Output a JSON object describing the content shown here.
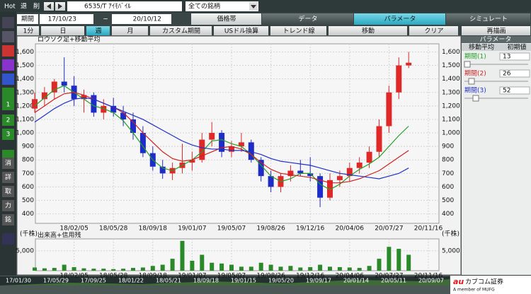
{
  "toolbar": {
    "hot": "Hot",
    "back": "退",
    "delete": "削",
    "symbol": "6535/T ｱｲﾓﾊﾞｲﾙ",
    "market": "全ての銘柄"
  },
  "period_bar": {
    "label": "期間",
    "from": "17/10/23",
    "sep": "~",
    "to": "20/10/12",
    "tabs": [
      "価格帯",
      "データ",
      "パラメータ",
      "シミュレート"
    ]
  },
  "interval_bar": {
    "buttons": [
      "1分",
      "日",
      "週",
      "月",
      "カスタム期間",
      "USドル換算",
      "トレンド線",
      "移動",
      "クリア",
      "再描画"
    ]
  },
  "side_icons": [
    "1",
    "2",
    "3",
    "消",
    "詳",
    "取",
    "力",
    "銘"
  ],
  "parameter_panel": {
    "title": "パラメータ",
    "col1": "移動平均",
    "col2": "初期値",
    "rows": [
      {
        "label": "期間(1)",
        "value": 13
      },
      {
        "label": "期間(2)",
        "value": 26
      },
      {
        "label": "期間(3)",
        "value": 52
      }
    ]
  },
  "chart_data": [
    {
      "type": "candlestick",
      "title": "ロウソク足+移動平均",
      "up_color": "#e02828",
      "down_color": "#1e2cc8",
      "categories": [
        null,
        null,
        null,
        null,
        "18/02/05",
        null,
        null,
        null,
        "18/05/28",
        null,
        null,
        null,
        "18/09/18",
        null,
        null,
        null,
        "19/01/07",
        null,
        null,
        null,
        "19/05/07",
        null,
        null,
        null,
        "19/08/26",
        null,
        null,
        null,
        "19/12/16",
        null,
        null,
        null,
        "20/04/06",
        null,
        null,
        null,
        "20/07/27",
        null,
        null,
        null,
        "20/11/16"
      ],
      "open": [
        1180,
        1250,
        1300,
        1380,
        1350,
        1250,
        1280,
        1150,
        1200,
        1150,
        1100,
        1000,
        850,
        750,
        700,
        740,
        780,
        800,
        950,
        1000,
        860,
        900,
        930,
        800,
        680,
        600,
        680,
        720,
        700,
        680,
        520,
        650,
        680,
        740,
        780,
        860,
        1050,
        1300,
        1500,
        null,
        null
      ],
      "high": [
        1300,
        1340,
        1400,
        1560,
        1420,
        1320,
        1300,
        1250,
        1260,
        1200,
        1150,
        1050,
        900,
        800,
        780,
        920,
        860,
        1000,
        1080,
        1020,
        940,
        1000,
        950,
        820,
        720,
        700,
        760,
        800,
        820,
        700,
        700,
        720,
        780,
        820,
        900,
        1100,
        1350,
        1560,
        1600,
        null,
        null
      ],
      "low": [
        1150,
        1200,
        1250,
        1300,
        1200,
        1150,
        1120,
        1100,
        1120,
        1050,
        950,
        820,
        720,
        660,
        650,
        700,
        720,
        780,
        900,
        820,
        820,
        860,
        780,
        640,
        560,
        560,
        640,
        680,
        640,
        450,
        500,
        600,
        640,
        700,
        740,
        820,
        1000,
        1250,
        1480,
        null,
        null
      ],
      "close": [
        1250,
        1300,
        1380,
        1350,
        1250,
        1280,
        1150,
        1200,
        1150,
        1100,
        1000,
        850,
        750,
        700,
        740,
        780,
        800,
        950,
        1000,
        860,
        900,
        930,
        800,
        680,
        600,
        680,
        720,
        700,
        680,
        520,
        650,
        680,
        740,
        780,
        860,
        1050,
        1300,
        1500,
        1520,
        null,
        null
      ],
      "series": [
        {
          "color": "#22a022",
          "values": [
            1200,
            1260,
            1320,
            1350,
            1300,
            1250,
            1200,
            1180,
            1150,
            1090,
            1000,
            900,
            800,
            740,
            720,
            760,
            800,
            860,
            940,
            950,
            920,
            900,
            840,
            760,
            680,
            640,
            660,
            700,
            700,
            620,
            580,
            620,
            680,
            730,
            770,
            820,
            900,
            980,
            1050,
            null,
            null
          ]
        },
        {
          "color": "#d02020",
          "values": [
            1150,
            1200,
            1250,
            1290,
            1300,
            1280,
            1250,
            1220,
            1190,
            1150,
            1080,
            1000,
            930,
            860,
            810,
            790,
            800,
            830,
            860,
            890,
            900,
            880,
            840,
            780,
            730,
            700,
            690,
            680,
            670,
            650,
            630,
            630,
            640,
            660,
            690,
            720,
            770,
            820,
            870,
            null,
            null
          ]
        },
        {
          "color": "#2030c8",
          "values": [
            1080,
            1130,
            1180,
            1220,
            1250,
            1260,
            1250,
            1220,
            1190,
            1160,
            1130,
            1100,
            1060,
            1020,
            980,
            940,
            910,
            890,
            880,
            880,
            870,
            870,
            860,
            840,
            810,
            790,
            780,
            770,
            760,
            740,
            720,
            700,
            690,
            680,
            670,
            660,
            680,
            700,
            740,
            null,
            null
          ]
        }
      ],
      "ylim": [
        330,
        1660
      ],
      "yticks": [
        {
          "value": 1600,
          "label": "1,600"
        },
        {
          "value": 1500,
          "label": "1,500"
        },
        {
          "value": 1400,
          "label": "1,400"
        },
        {
          "value": 1300,
          "label": "1,300"
        },
        {
          "value": 1200,
          "label": "1,200"
        },
        {
          "value": 1100,
          "label": "1,100"
        },
        {
          "value": 1000,
          "label": "1,000"
        },
        900,
        800,
        700,
        600,
        500,
        400
      ],
      "grid": true
    },
    {
      "type": "bar",
      "title": "出来高+信用残",
      "unit": "(千株)",
      "color": "#2a8a2a",
      "categories": [
        null,
        null,
        null,
        null,
        "18/02/05",
        null,
        null,
        null,
        "18/05/28",
        null,
        null,
        null,
        "18/09/18",
        null,
        null,
        null,
        "19/01/07",
        null,
        null,
        null,
        "19/05/07",
        null,
        null,
        null,
        "19/08/26",
        null,
        null,
        null,
        "19/12/16",
        null,
        null,
        null,
        "20/04/06",
        null,
        null,
        null,
        "20/07/27",
        null,
        null,
        null,
        "20/11/16"
      ],
      "values": [
        800,
        600,
        700,
        1500,
        900,
        600,
        500,
        500,
        400,
        500,
        700,
        800,
        1200,
        1500,
        3000,
        7500,
        2500,
        4000,
        2000,
        1800,
        1500,
        1000,
        1000,
        2000,
        1500,
        1000,
        1200,
        800,
        900,
        1500,
        1000,
        900,
        800,
        700,
        1200,
        3000,
        6000,
        5500,
        4000,
        null,
        null
      ],
      "ylim": [
        0,
        8000
      ],
      "yticks": [
        {
          "value": 5000,
          "label": "5,000"
        }
      ],
      "grid": true
    }
  ],
  "timeline": [
    "17/01/30",
    "17/05/29",
    "17/09/25",
    "18/01/22",
    "18/05/21",
    "18/09/18",
    "19/01/15",
    "19/05/20",
    "19/09/17",
    "20/01/14",
    "20/05/11",
    "20/09/07"
  ],
  "logo": {
    "brand": "au",
    "name": "カブコム証券",
    "member": "A member of MUFG"
  }
}
